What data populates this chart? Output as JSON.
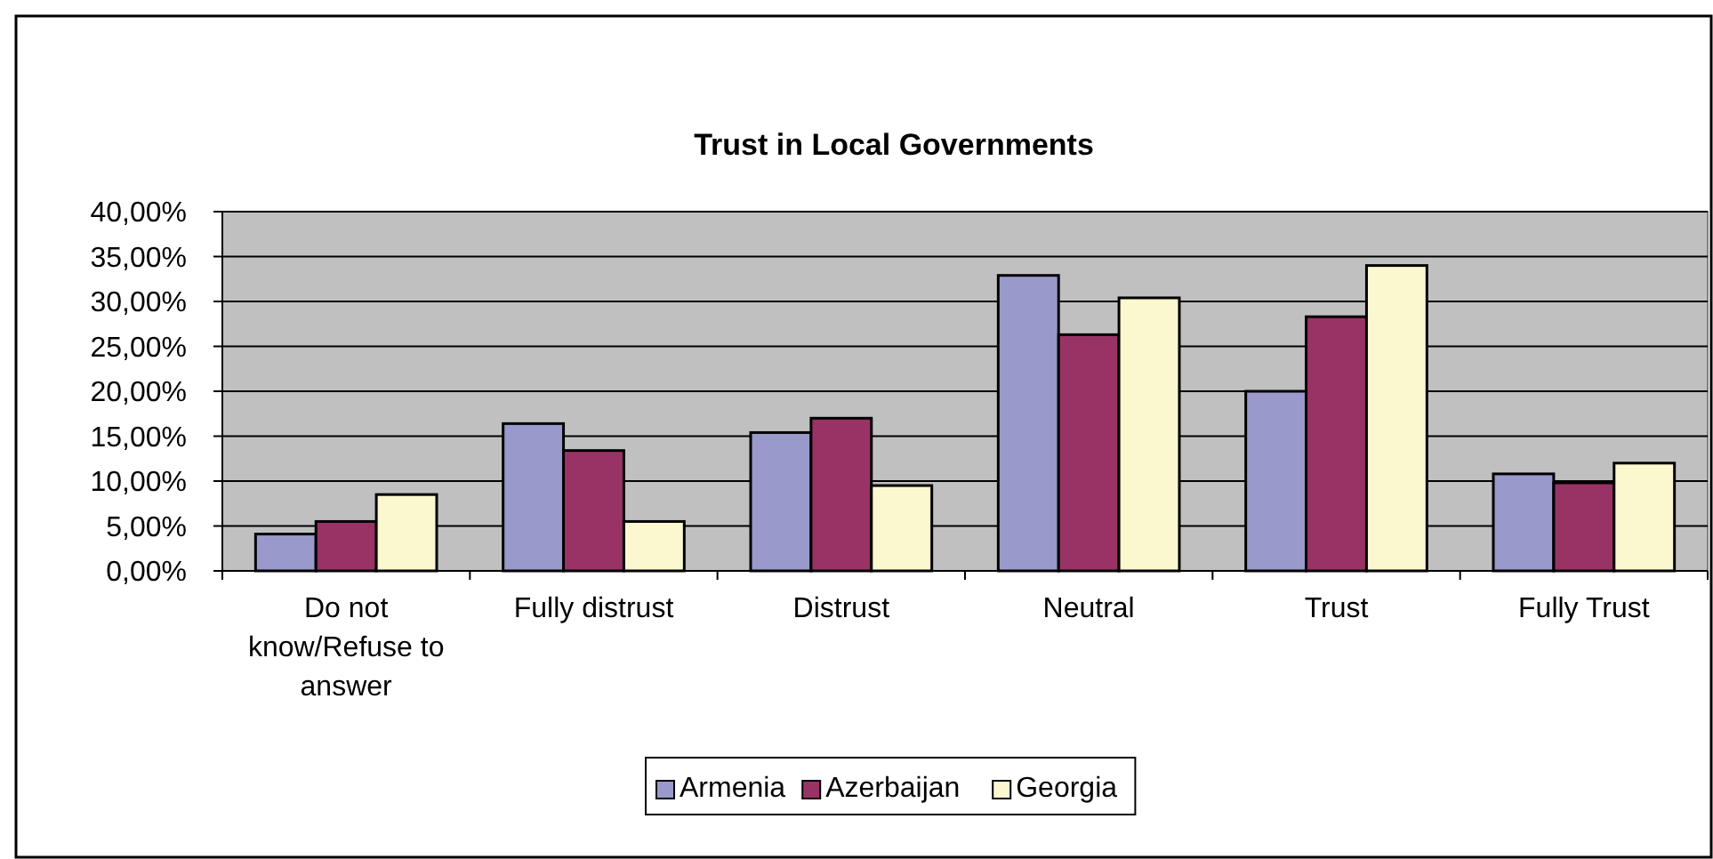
{
  "chart_data": {
    "type": "bar",
    "title": "Trust in Local Governments",
    "categories": [
      "Do not know/Refuse to answer",
      "Fully distrust",
      "Distrust",
      "Neutral",
      "Trust",
      "Fully Trust"
    ],
    "series": [
      {
        "name": "Armenia",
        "color": "#9999cc",
        "values": [
          4.1,
          16.4,
          15.4,
          32.9,
          20.0,
          10.8
        ]
      },
      {
        "name": "Azerbaijan",
        "color": "#993366",
        "values": [
          5.5,
          13.4,
          17.0,
          26.3,
          28.3,
          9.8
        ]
      },
      {
        "name": "Georgia",
        "color": "#fbf8d0",
        "values": [
          8.5,
          5.5,
          9.5,
          30.4,
          34.0,
          12.0
        ]
      }
    ],
    "ylim": [
      0,
      40
    ],
    "yticks": [
      {
        "value": 0,
        "label": "0,00%"
      },
      {
        "value": 5,
        "label": "5,00%"
      },
      {
        "value": 10,
        "label": "10,00%"
      },
      {
        "value": 15,
        "label": "15,00%"
      },
      {
        "value": 20,
        "label": "20,00%"
      },
      {
        "value": 25,
        "label": "25,00%"
      },
      {
        "value": 30,
        "label": "30,00%"
      },
      {
        "value": 35,
        "label": "35,00%"
      },
      {
        "value": 40,
        "label": "40,00%"
      }
    ],
    "grid": "y",
    "legend": "bottom"
  }
}
